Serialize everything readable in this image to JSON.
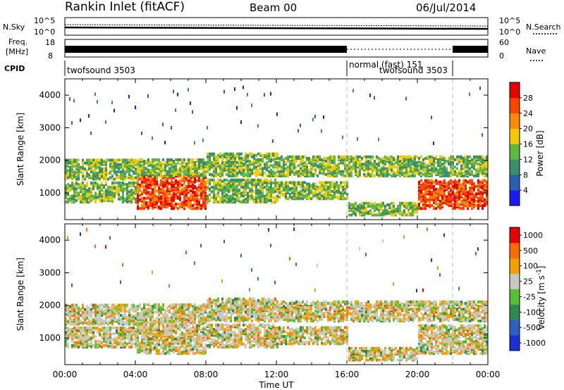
{
  "header": {
    "station": "Rankin Inlet (fitACF)",
    "beam": "Beam 00",
    "date": "06/Jul/2014"
  },
  "noise_panel": {
    "left_label": "N.Sky",
    "right_label": "N.Search",
    "left_ticks": [
      "10^5",
      "10^0"
    ],
    "right_ticks": [
      "10^5",
      "10^0"
    ]
  },
  "freq_panel": {
    "left_label_1": "Freq.",
    "left_label_2": "[MHz]",
    "left_ticks": [
      "18",
      "8"
    ],
    "right_label": "Nave",
    "right_ticks": [
      "60",
      "0"
    ]
  },
  "cpid_panel": {
    "label": "CPID",
    "modes": [
      {
        "name": "twofsound 3503",
        "start_hr": 0
      },
      {
        "name": "normal (fast) 151",
        "start_hr": 16
      },
      {
        "name": "twofsound 3503",
        "start_hr": 22
      }
    ]
  },
  "chart_data": [
    {
      "type": "heatmap",
      "ylabel": "Slant Range [km]",
      "xlabel": "Time UT",
      "yticks": [
        1000,
        2000,
        3000,
        4000
      ],
      "xticks": [
        "00:00",
        "04:00",
        "08:00",
        "12:00",
        "16:00",
        "20:00",
        "00:00"
      ],
      "colorbar": {
        "label": "Power [dB]",
        "ticks": [
          "4",
          "8",
          "12",
          "16",
          "20",
          "24",
          "28"
        ],
        "colors": [
          "#1a1aff",
          "#2a5fb0",
          "#3a8f6a",
          "#5cb840",
          "#f5c800",
          "#ff8a00",
          "#ff4400",
          "#e60000"
        ]
      }
    },
    {
      "type": "heatmap",
      "ylabel": "Slant Range [km]",
      "xlabel": "Time UT",
      "yticks": [
        1000,
        2000,
        3000,
        4000
      ],
      "xticks": [
        "00:00",
        "04:00",
        "08:00",
        "12:00",
        "16:00",
        "20:00",
        "00:00"
      ],
      "colorbar": {
        "label": "Velocity [m s-1]",
        "ticks": [
          "1000",
          "500",
          "100",
          "25",
          "-25",
          "-100",
          "-500",
          "-1000"
        ],
        "colors": [
          "#1c2fd6",
          "#2f5fc0",
          "#2f8a4f",
          "#57c032",
          "#c8c8c0",
          "#f5a000",
          "#ff6a00",
          "#e80000"
        ]
      }
    }
  ]
}
